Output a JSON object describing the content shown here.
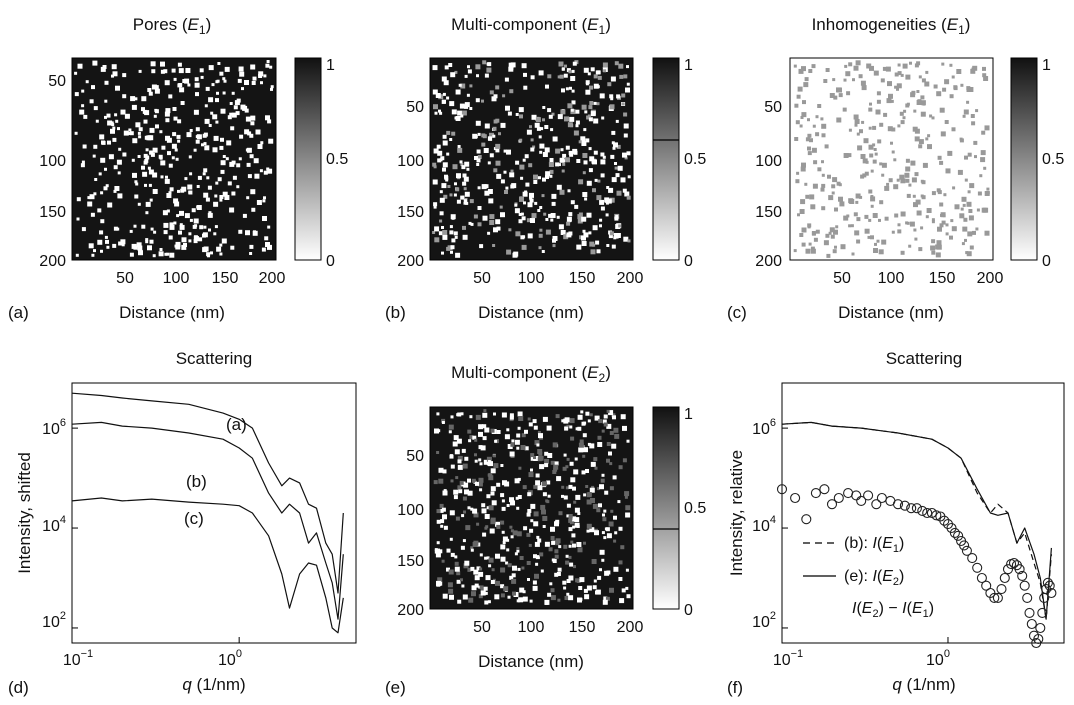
{
  "colorbar_ticks": [
    "1",
    "0.5",
    "0"
  ],
  "chart_data": [
    {
      "panel": "(a)",
      "type": "heatmap",
      "title": "Pores (",
      "title_var": "E",
      "title_sub": "1",
      "title_close": ")",
      "xlabel": "Distance (nm)",
      "xticks": [
        "50",
        "100",
        "150",
        "200"
      ],
      "yticks": [
        "50",
        "100",
        "150",
        "200"
      ],
      "xlim": [
        0,
        200
      ],
      "ylim": [
        0,
        200
      ],
      "background_value": 1,
      "pore_value": 0,
      "colorbar": {
        "range": [
          0,
          1
        ],
        "ticks": [
          "1",
          "0.5",
          "0"
        ]
      }
    },
    {
      "panel": "(b)",
      "type": "heatmap",
      "title": "Multi-component (",
      "title_var": "E",
      "title_sub": "1",
      "title_close": ")",
      "xlabel": "Distance (nm)",
      "xticks": [
        "50",
        "100",
        "150",
        "200"
      ],
      "yticks": [
        "50",
        "100",
        "150",
        "200"
      ],
      "xlim": [
        0,
        200
      ],
      "ylim": [
        0,
        200
      ],
      "background_value": 1,
      "pore_value": 0,
      "secondary_value": 0.6,
      "colorbar": {
        "range": [
          0,
          1
        ],
        "ticks": [
          "1",
          "0.5",
          "0"
        ],
        "marker": 0.6
      }
    },
    {
      "panel": "(c)",
      "type": "heatmap",
      "title": "Inhomogeneities (",
      "title_var": "E",
      "title_sub": "1",
      "title_close": ")",
      "xlabel": "Distance (nm)",
      "xticks": [
        "50",
        "100",
        "150",
        "200"
      ],
      "yticks": [
        "50",
        "100",
        "150",
        "200"
      ],
      "xlim": [
        0,
        200
      ],
      "ylim": [
        0,
        200
      ],
      "background_value": 0,
      "inclusion_value": 0.4,
      "colorbar": {
        "range": [
          0,
          1
        ],
        "ticks": [
          "1",
          "0.5",
          "0"
        ]
      }
    },
    {
      "panel": "(d)",
      "type": "line",
      "title": "Scattering",
      "xlabel_var": "q",
      "xlabel_unit": " (1/nm)",
      "ylabel": "Intensity, shifted",
      "xscale": "log",
      "yscale": "log",
      "xlim": [
        0.1,
        5
      ],
      "ylim": [
        50,
        8000000
      ],
      "xticks": [
        {
          "base": "10",
          "exp": "−1"
        },
        {
          "base": "10",
          "exp": "0"
        }
      ],
      "yticks": [
        {
          "base": "10",
          "exp": "2",
          "value": 100
        },
        {
          "base": "10",
          "exp": "4",
          "value": 10000
        },
        {
          "base": "10",
          "exp": "6",
          "value": 1000000
        }
      ],
      "series": [
        {
          "name": "(a)",
          "x": [
            0.1,
            0.15,
            0.2,
            0.3,
            0.5,
            0.8,
            1.0,
            1.2,
            1.5,
            1.8,
            2.0,
            2.3,
            2.6,
            2.9,
            3.3,
            3.6,
            3.9,
            4.2
          ],
          "y": [
            5000000,
            4500000,
            4000000,
            3500000,
            3000000,
            2000000,
            1500000,
            1000000,
            200000,
            70000,
            100000,
            80000,
            30000,
            25000,
            5000,
            3000,
            500,
            20000
          ]
        },
        {
          "name": "(b)",
          "x": [
            0.1,
            0.15,
            0.2,
            0.3,
            0.5,
            0.8,
            1.0,
            1.2,
            1.5,
            1.8,
            2.0,
            2.3,
            2.6,
            2.9,
            3.3,
            3.6,
            3.9,
            4.2
          ],
          "y": [
            1200000,
            1300000,
            1100000,
            1000000,
            800000,
            600000,
            400000,
            250000,
            50000,
            20000,
            30000,
            20000,
            5000,
            8000,
            2000,
            800,
            150,
            3000
          ]
        },
        {
          "name": "(c)",
          "x": [
            0.1,
            0.15,
            0.2,
            0.3,
            0.5,
            0.8,
            1.0,
            1.2,
            1.5,
            1.8,
            2.0,
            2.3,
            2.6,
            2.9,
            3.3,
            3.6,
            3.9,
            4.2
          ],
          "y": [
            35000,
            40000,
            35000,
            38000,
            33000,
            30000,
            28000,
            20000,
            7000,
            1200,
            250,
            1200,
            2000,
            1800,
            400,
            100,
            80,
            400
          ]
        }
      ],
      "labels": [
        "(a)",
        "(b)",
        "(c)"
      ]
    },
    {
      "panel": "(e)",
      "type": "heatmap",
      "title": "Multi-component (",
      "title_var": "E",
      "title_sub": "2",
      "title_close": ")",
      "xlabel": "Distance (nm)",
      "xticks": [
        "50",
        "100",
        "150",
        "200"
      ],
      "yticks": [
        "50",
        "100",
        "150",
        "200"
      ],
      "xlim": [
        0,
        200
      ],
      "ylim": [
        0,
        200
      ],
      "background_value": 1,
      "pore_value": 0,
      "secondary_value": 0.4,
      "colorbar": {
        "range": [
          0,
          1
        ],
        "ticks": [
          "1",
          "0.5",
          "0"
        ],
        "marker": 0.4
      }
    },
    {
      "panel": "(f)",
      "type": "line",
      "title": "Scattering",
      "xlabel_var": "q",
      "xlabel_unit": " (1/nm)",
      "ylabel": "Intensity, relative",
      "xscale": "log",
      "yscale": "log",
      "xlim": [
        0.1,
        5
      ],
      "ylim": [
        50,
        8000000
      ],
      "xticks": [
        {
          "base": "10",
          "exp": "−1"
        },
        {
          "base": "10",
          "exp": "0"
        }
      ],
      "yticks": [
        {
          "base": "10",
          "exp": "2",
          "value": 100
        },
        {
          "base": "10",
          "exp": "4",
          "value": 10000
        },
        {
          "base": "10",
          "exp": "6",
          "value": 1000000
        }
      ],
      "series": [
        {
          "name": "(b): I(E1)",
          "style": "dashed",
          "x": [
            0.1,
            0.15,
            0.2,
            0.3,
            0.5,
            0.8,
            1.0,
            1.2,
            1.5,
            1.8,
            2.0,
            2.3,
            2.6,
            2.9,
            3.3,
            3.6,
            3.9,
            4.2
          ],
          "y": [
            1200000,
            1300000,
            1100000,
            1000000,
            800000,
            600000,
            400000,
            250000,
            50000,
            20000,
            30000,
            20000,
            5000,
            8000,
            2000,
            800,
            150,
            3000
          ]
        },
        {
          "name": "(e): I(E2)",
          "style": "solid",
          "x": [
            0.1,
            0.15,
            0.2,
            0.3,
            0.5,
            0.8,
            1.0,
            1.2,
            1.5,
            1.8,
            2.0,
            2.3,
            2.6,
            2.9,
            3.3,
            3.6,
            3.9,
            4.2
          ],
          "y": [
            1200000,
            1300000,
            1100000,
            1000000,
            800000,
            600000,
            400000,
            250000,
            60000,
            20000,
            18000,
            20000,
            5000,
            10000,
            3000,
            1000,
            150,
            4000
          ]
        },
        {
          "name": "I(E2) − I(E1)",
          "style": "circles",
          "x": [
            0.1,
            0.12,
            0.14,
            0.16,
            0.18,
            0.2,
            0.22,
            0.25,
            0.28,
            0.3,
            0.33,
            0.37,
            0.4,
            0.45,
            0.5,
            0.55,
            0.6,
            0.65,
            0.7,
            0.75,
            0.8,
            0.85,
            0.9,
            0.95,
            1.0,
            1.05,
            1.1,
            1.15,
            1.2,
            1.25,
            1.3,
            1.4,
            1.5,
            1.6,
            1.7,
            1.8,
            1.9,
            2.0,
            2.1,
            2.2,
            2.3,
            2.4,
            2.5,
            2.6,
            2.7,
            2.8,
            2.9,
            3.0,
            3.1,
            3.2,
            3.3,
            3.4,
            3.5,
            3.6,
            3.7,
            3.8,
            3.9,
            4.0,
            4.1,
            4.2
          ],
          "y": [
            60000,
            40000,
            15000,
            50000,
            60000,
            30000,
            40000,
            50000,
            45000,
            35000,
            45000,
            30000,
            40000,
            35000,
            30000,
            28000,
            25000,
            25000,
            22000,
            20000,
            20000,
            18000,
            17000,
            14000,
            12000,
            10000,
            8000,
            7000,
            5500,
            4500,
            3500,
            2500,
            1600,
            1000,
            700,
            500,
            400,
            400,
            600,
            1000,
            1500,
            1900,
            2000,
            1800,
            1500,
            1100,
            700,
            400,
            200,
            120,
            70,
            50,
            60,
            100,
            200,
            400,
            600,
            800,
            700,
            500
          ]
        }
      ],
      "legend": [
        {
          "prefix": "(b): ",
          "var": "I",
          "sub": "E",
          "subsub": "1"
        },
        {
          "prefix": "(e): ",
          "var": "I",
          "sub": "E",
          "subsub": "2"
        }
      ],
      "difference_label": {
        "var": "I",
        "sub": "E",
        "subsub": "2",
        "minus": "− ",
        "var2": "I",
        "sub2": "E",
        "subsub2": "1"
      }
    }
  ]
}
